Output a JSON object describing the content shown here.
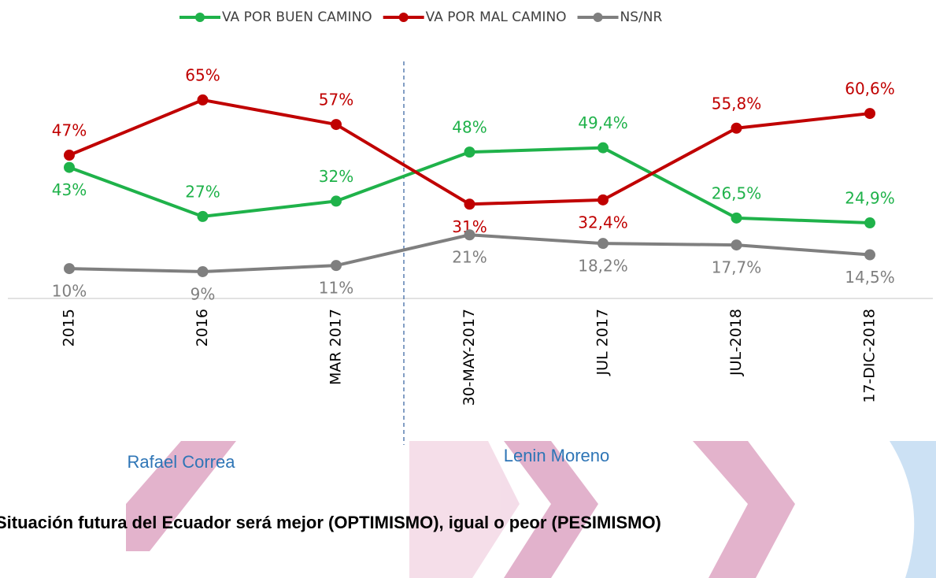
{
  "chart_data": {
    "type": "line",
    "categories": [
      "2015",
      "2016",
      "MAR 2017",
      "30-MAY-2017",
      "JUL 2017",
      "JUL-2018",
      "17-DIC-2018"
    ],
    "series": [
      {
        "name": "VA POR BUEN CAMINO",
        "color": "#1fb24a",
        "values": [
          43,
          27,
          32,
          48,
          49.4,
          26.5,
          24.9
        ],
        "value_labels": [
          "43%",
          "27%",
          "32%",
          "48%",
          "49,4%",
          "26,5%",
          "24,9%"
        ]
      },
      {
        "name": "VA POR MAL CAMINO",
        "color": "#c00000",
        "values": [
          47,
          65,
          57,
          31,
          32.4,
          55.8,
          60.6
        ],
        "value_labels": [
          "47%",
          "65%",
          "57%",
          "31%",
          "32,4%",
          "55,8%",
          "60,6%"
        ]
      },
      {
        "name": "NS/NR",
        "color": "#7f7f7f",
        "values": [
          10,
          9,
          11,
          21,
          18.2,
          17.7,
          14.5
        ],
        "value_labels": [
          "10%",
          "9%",
          "11%",
          "21%",
          "18,2%",
          "17,7%",
          "14,5%"
        ]
      }
    ],
    "ylim": [
      0,
      75
    ],
    "annotations": [
      "Rafael Correa",
      "Lenin Moreno"
    ],
    "footer_title": "Situación futura del Ecuador será mejor (OPTIMISMO), igual o peor (PESIMISMO)"
  }
}
